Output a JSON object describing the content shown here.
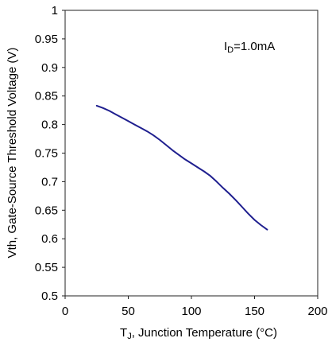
{
  "chart_data": {
    "type": "line",
    "xlabel": {
      "main": "T",
      "sub": "J",
      "rest": ", Junction Temperature (°C)"
    },
    "ylabel": "Vth, Gate-Source Threshold Voltage (V)",
    "annotation": {
      "main": "I",
      "sub": "D",
      "rest": "=1.0mA"
    },
    "xlim": [
      0,
      200
    ],
    "ylim": [
      0.5,
      1.0
    ],
    "x_ticks": [
      0,
      50,
      100,
      150,
      200
    ],
    "x_tick_labels": [
      "0",
      "50",
      "100",
      "150",
      "200"
    ],
    "y_ticks": [
      0.5,
      0.55,
      0.6,
      0.65,
      0.7,
      0.75,
      0.8,
      0.85,
      0.9,
      0.95,
      1.0
    ],
    "y_tick_labels": [
      "0.5",
      "0.55",
      "0.6",
      "0.65",
      "0.7",
      "0.75",
      "0.8",
      "0.85",
      "0.9",
      "0.95",
      "1"
    ],
    "grid": false,
    "line_color": "#1f1f8f",
    "series": [
      {
        "x": [
          25,
          30,
          35,
          40,
          45,
          50,
          55,
          60,
          65,
          70,
          75,
          80,
          85,
          90,
          95,
          100,
          105,
          110,
          115,
          120,
          125,
          130,
          135,
          140,
          145,
          150,
          155,
          160
        ],
        "values": [
          0.833,
          0.829,
          0.824,
          0.818,
          0.812,
          0.806,
          0.8,
          0.794,
          0.788,
          0.781,
          0.773,
          0.764,
          0.755,
          0.747,
          0.739,
          0.732,
          0.725,
          0.718,
          0.71,
          0.7,
          0.689,
          0.679,
          0.668,
          0.656,
          0.644,
          0.633,
          0.624,
          0.616
        ]
      }
    ]
  }
}
